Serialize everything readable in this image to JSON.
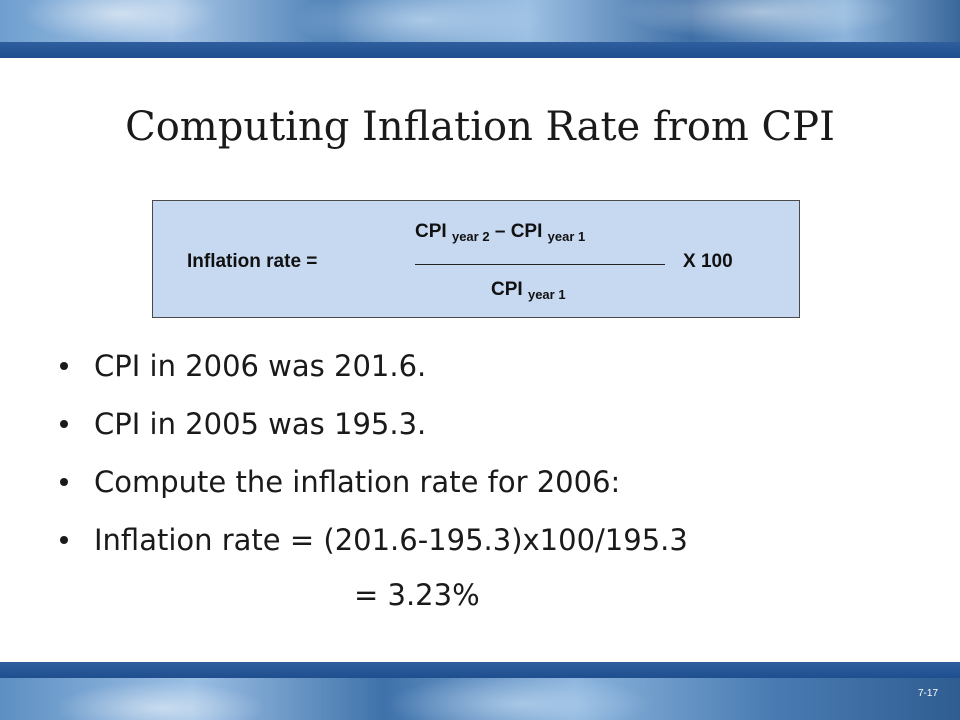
{
  "slide": {
    "title": "Computing Inflation Rate from CPI",
    "slide_number": "7-17"
  },
  "formula": {
    "label": "Inflation rate  =",
    "numerator_cpi_1": "CPI",
    "numerator_sub_1": "year 2",
    "numerator_minus": " – CPI",
    "numerator_sub_2": "year 1",
    "denominator_cpi": "CPI",
    "denominator_sub": "year 1",
    "multiplier": "X 100"
  },
  "bullets": [
    "CPI in 2006 was 201.6.",
    "CPI in 2005 was 195.3.",
    "Compute the inflation rate for 2006:",
    "Inflation rate = (201.6-195.3)x100/195.3"
  ],
  "result_line": "= 3.23%"
}
